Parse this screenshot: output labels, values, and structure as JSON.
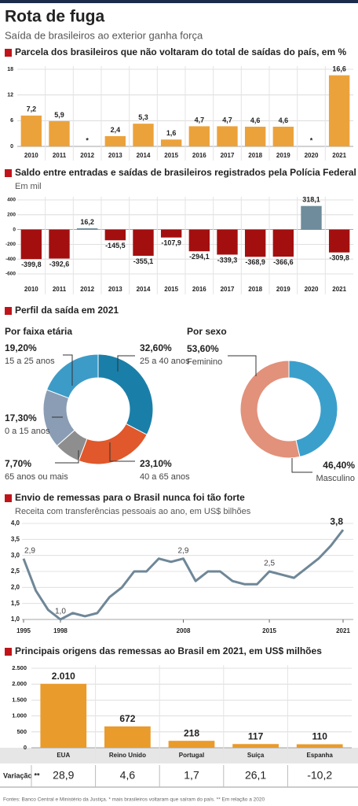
{
  "header": {
    "title": "Rota de fuga",
    "subtitle": "Saída de brasileiros ao exterior ganha força"
  },
  "chart_data": [
    {
      "type": "bar",
      "title": "Parcela dos brasileiros que não voltaram do total de saídas do país, em %",
      "categories": [
        2010,
        2011,
        2012,
        2013,
        2014,
        2015,
        2016,
        2017,
        2018,
        2019,
        2020,
        2021
      ],
      "values": [
        7.2,
        5.9,
        null,
        2.4,
        5.3,
        1.6,
        4.7,
        4.7,
        4.6,
        4.6,
        null,
        16.6
      ],
      "value_labels": [
        "7,2",
        "5,9",
        "*",
        "2,4",
        "5,3",
        "1,6",
        "4,7",
        "4,7",
        "4,6",
        "4,6",
        "*",
        "16,6"
      ],
      "color": "#eca23b",
      "ylim": [
        0,
        18
      ],
      "yticks": [
        0,
        6,
        12,
        18
      ],
      "grid": true
    },
    {
      "type": "bar",
      "title": "Saldo entre entradas e saídas de brasileiros registrados pela Polícia Federal",
      "subtitle": "Em mil",
      "categories": [
        2010,
        2011,
        2012,
        2013,
        2014,
        2015,
        2016,
        2017,
        2018,
        2019,
        2020,
        2021
      ],
      "values": [
        -399.8,
        -392.6,
        16.2,
        -145.5,
        -355.1,
        -107.9,
        -294.1,
        -339.3,
        -368.9,
        -366.6,
        318.1,
        -309.8
      ],
      "value_labels": [
        "-399,8",
        "-392,6",
        "16,2",
        "-145,5",
        "-355,1",
        "-107,9",
        "-294,1",
        "-339,3",
        "-368,9",
        "-366,6",
        "318,1",
        "-309,8"
      ],
      "colors": [
        "#a30f0f",
        "#a30f0f",
        "#6f8c9c",
        "#a30f0f",
        "#a30f0f",
        "#a30f0f",
        "#a30f0f",
        "#a30f0f",
        "#a30f0f",
        "#a30f0f",
        "#6f8c9c",
        "#a30f0f"
      ],
      "ylim": [
        -600,
        400
      ],
      "yticks": [
        400,
        200,
        0,
        -200,
        -400,
        -600
      ],
      "grid": true
    },
    {
      "type": "pie",
      "section": "Perfil da saída em 2021",
      "title": "Por faixa etária",
      "categories": [
        "25 a 40 anos",
        "40 a 65 anos",
        "65 anos ou mais",
        "0 a 15 anos",
        "15 a 25 anos"
      ],
      "values": [
        32.6,
        23.1,
        7.7,
        17.3,
        19.2
      ],
      "value_labels": [
        "32,60%",
        "23,10%",
        "7,70%",
        "17,30%",
        "19,20%"
      ],
      "colors": [
        "#1a7fa8",
        "#e0582b",
        "#8e8e8e",
        "#8a9db4",
        "#3d9bc8"
      ]
    },
    {
      "type": "pie",
      "title": "Por sexo",
      "categories": [
        "Masculino",
        "Feminino"
      ],
      "values": [
        46.4,
        53.6
      ],
      "value_labels": [
        "46,40%",
        "53,60%"
      ],
      "colors": [
        "#3b9fcb",
        "#e2917b"
      ]
    },
    {
      "type": "line",
      "title": "Envio de remessas para o Brasil nunca foi tão forte",
      "subtitle": "Receita com transferências pessoais ao ano, em US$ bilhões",
      "x": [
        1995,
        1996,
        1997,
        1998,
        1999,
        2000,
        2001,
        2002,
        2003,
        2004,
        2005,
        2006,
        2007,
        2008,
        2009,
        2010,
        2011,
        2012,
        2013,
        2014,
        2015,
        2016,
        2017,
        2018,
        2019,
        2020,
        2021
      ],
      "series": [
        {
          "color": "#6f8797",
          "values": [
            2.9,
            1.9,
            1.3,
            1.0,
            1.2,
            1.1,
            1.2,
            1.7,
            2.0,
            2.5,
            2.5,
            2.9,
            2.8,
            2.9,
            2.2,
            2.5,
            2.5,
            2.2,
            2.1,
            2.1,
            2.5,
            2.4,
            2.3,
            2.6,
            2.9,
            3.3,
            3.8
          ],
          "value_labels": [
            "2,9",
            null,
            null,
            "1,0",
            null,
            null,
            null,
            null,
            null,
            null,
            null,
            null,
            null,
            "2,9",
            null,
            null,
            null,
            null,
            null,
            null,
            "2,5",
            null,
            null,
            null,
            null,
            null,
            "3,8"
          ]
        }
      ],
      "xlim": [
        1995,
        2021
      ],
      "xticks": [
        1995,
        1998,
        2008,
        2015,
        2021
      ],
      "ylim": [
        1.0,
        4.0
      ],
      "yticks": [
        {
          "value": 1.0,
          "label": "1,0"
        },
        {
          "value": 1.5,
          "label": "1,5"
        },
        {
          "value": 2.0,
          "label": "2,0"
        },
        {
          "value": 2.5,
          "label": "2,5"
        },
        {
          "value": 3.0,
          "label": "3,0"
        },
        {
          "value": 3.5,
          "label": "3,5"
        },
        {
          "value": 4.0,
          "label": "4,0"
        }
      ],
      "grid": true
    },
    {
      "type": "bar",
      "title": "Principais origens das remessas ao Brasil em 2021, em US$ milhões",
      "categories": [
        "EUA",
        "Reino Unido",
        "Portugal",
        "Suíça",
        "Espanha"
      ],
      "values": [
        2010,
        672,
        218,
        117,
        110
      ],
      "value_labels": [
        "2.010",
        "672",
        "218",
        "117",
        "110"
      ],
      "color": "#e99b2c",
      "ylim": [
        0,
        2500
      ],
      "yticks": [
        0,
        500,
        {
          "value": 1000,
          "label": "1.000"
        },
        {
          "value": 1500,
          "label": "1.500"
        },
        {
          "value": 2000,
          "label": "2.000"
        },
        {
          "value": 2500,
          "label": "2.500"
        }
      ],
      "grid": true,
      "variation": {
        "label": "Variação **",
        "values": [
          28.9,
          4.6,
          1.7,
          26.1,
          -10.2
        ],
        "value_labels": [
          "28,9",
          "4,6",
          "1,7",
          "26,1",
          "-10,2"
        ]
      }
    }
  ],
  "footer": "Fontes: Banco Central e Ministério da Justiça. * mais brasileiros voltaram que saíram do país. ** Em relação a 2020"
}
